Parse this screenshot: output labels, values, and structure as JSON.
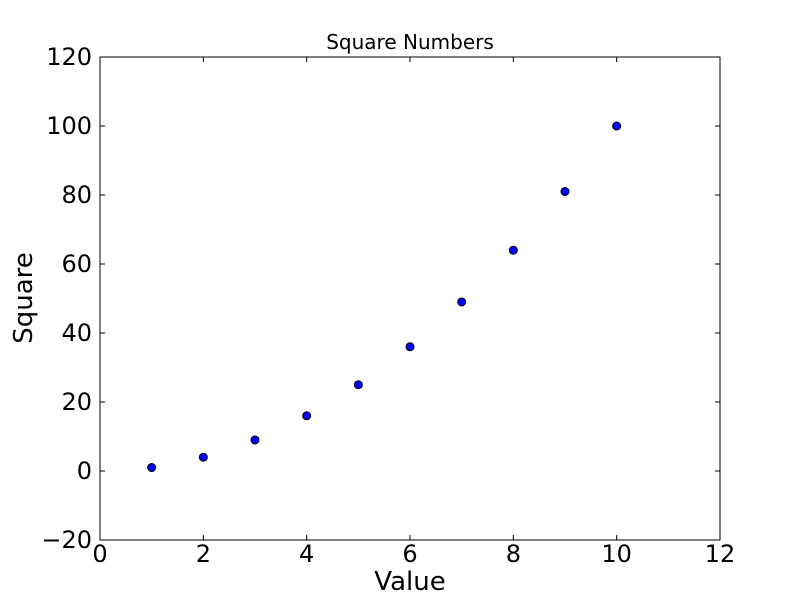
{
  "figure": {
    "background": "#ffffff"
  },
  "chart_data": {
    "type": "scatter",
    "title": "Square Numbers",
    "xlabel": "Value",
    "ylabel": "Square",
    "x": [
      1,
      2,
      3,
      4,
      5,
      6,
      7,
      8,
      9,
      10
    ],
    "y": [
      1,
      4,
      9,
      16,
      25,
      36,
      49,
      64,
      81,
      100
    ],
    "xlim": [
      0,
      12
    ],
    "ylim": [
      -20,
      120
    ],
    "xticks": [
      0,
      2,
      4,
      6,
      8,
      10,
      12
    ],
    "xtick_labels": [
      "0",
      "2",
      "4",
      "6",
      "8",
      "10",
      "12"
    ],
    "yticks": [
      -20,
      0,
      20,
      40,
      60,
      80,
      100,
      120
    ],
    "ytick_labels": [
      "−20",
      "0",
      "20",
      "40",
      "60",
      "80",
      "100",
      "120"
    ],
    "grid": false,
    "legend": false,
    "tick_direction": "in",
    "tick_length": 5,
    "marker": {
      "shape": "circle",
      "fill": "#0000ff",
      "edge": "#000000",
      "radius": 4
    },
    "colors": {
      "axes": "#000000",
      "text": "#000000",
      "background": "#ffffff"
    }
  }
}
